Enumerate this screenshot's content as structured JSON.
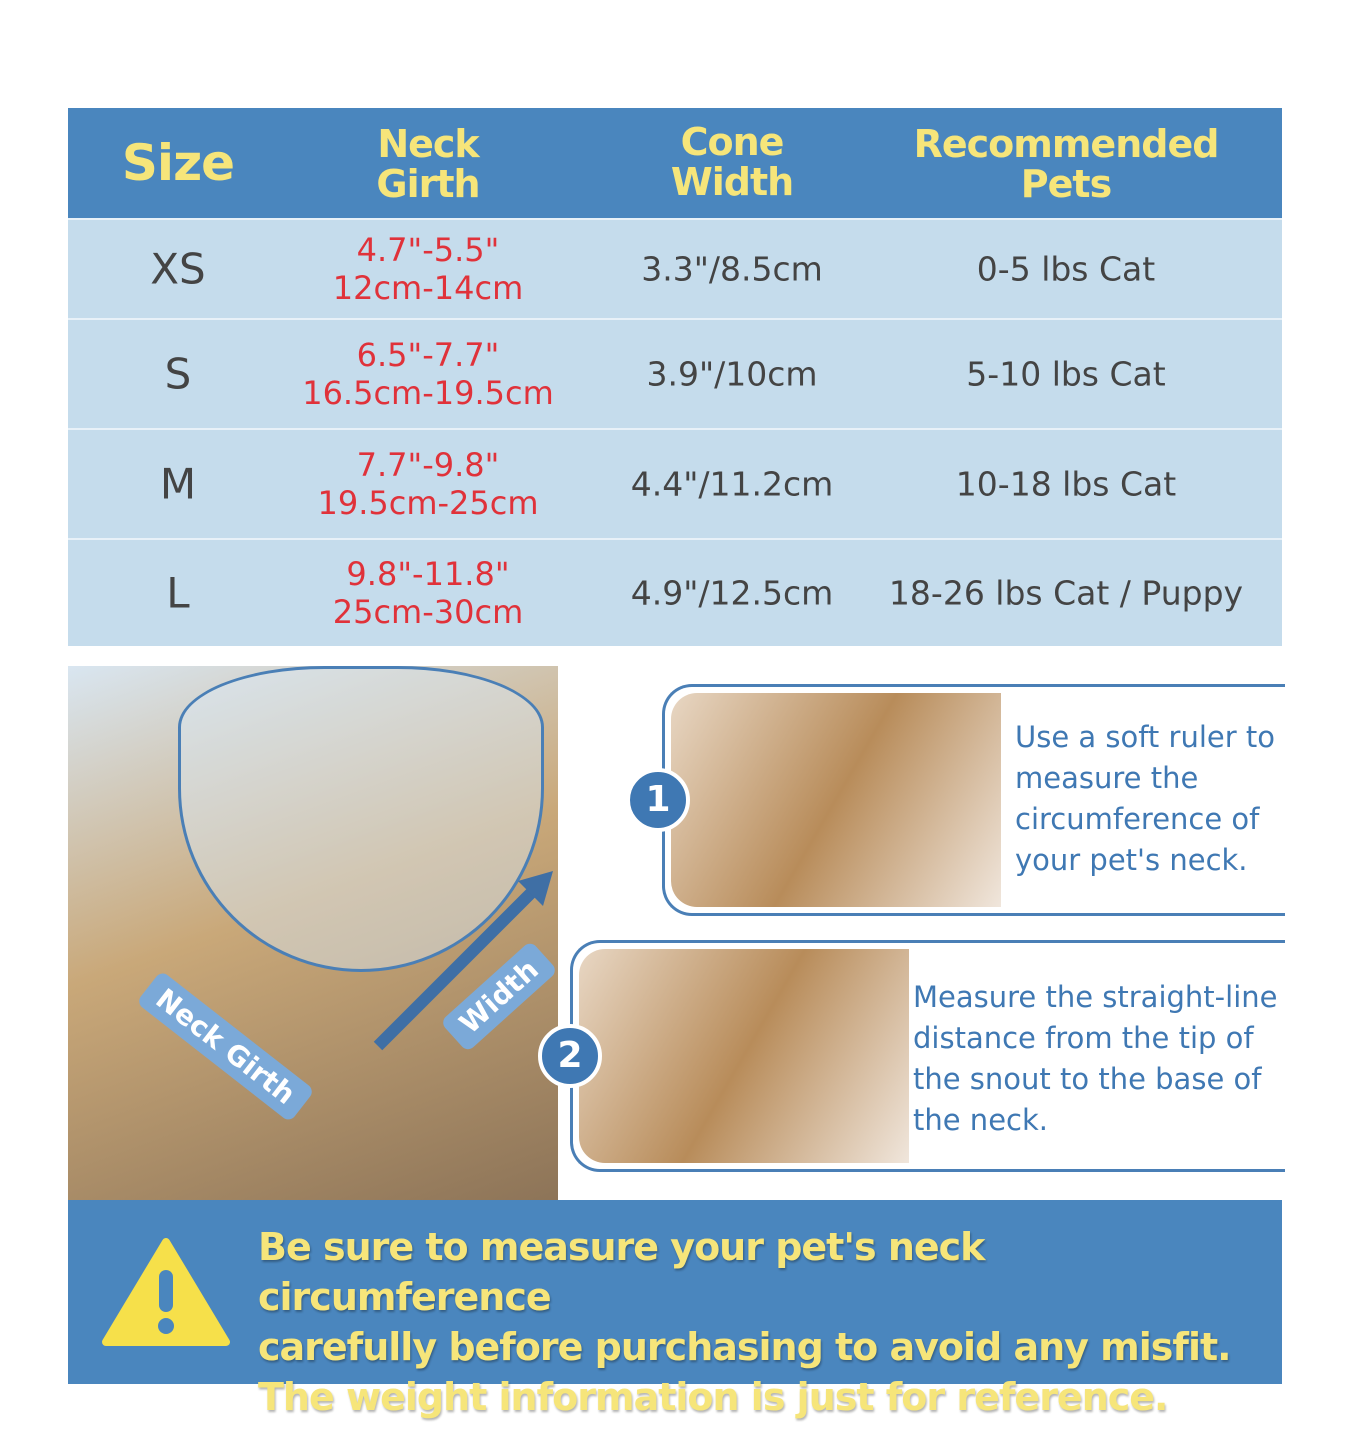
{
  "table": {
    "headers": [
      "Size",
      "Neck\nGirth",
      "Cone\nWidth",
      "Recommended\nPets"
    ],
    "header_lines": [
      [
        "Size"
      ],
      [
        "Neck",
        "Girth"
      ],
      [
        "Cone",
        "Width"
      ],
      [
        "Recommended",
        "Pets"
      ]
    ],
    "rows": [
      {
        "size": "XS",
        "girth_in": "4.7\"-5.5\"",
        "girth_cm": "12cm-14cm",
        "cone_width": "3.3\"/8.5cm",
        "pets": "0-5 lbs Cat"
      },
      {
        "size": "S",
        "girth_in": "6.5\"-7.7\"",
        "girth_cm": "16.5cm-19.5cm",
        "cone_width": "3.9\"/10cm",
        "pets": "5-10 lbs Cat"
      },
      {
        "size": "M",
        "girth_in": "7.7\"-9.8\"",
        "girth_cm": "19.5cm-25cm",
        "cone_width": "4.4\"/11.2cm",
        "pets": "10-18 lbs Cat"
      },
      {
        "size": "L",
        "girth_in": "9.8\"-11.8\"",
        "girth_cm": "25cm-30cm",
        "cone_width": "4.9\"/12.5cm",
        "pets": "18-26 lbs Cat / Puppy"
      }
    ]
  },
  "diagram": {
    "neck_label": "Neck Girth",
    "width_label": "Width"
  },
  "steps": [
    {
      "number": "1",
      "lines": [
        "Use a soft ruler to",
        "measure the",
        "circumference of",
        "your pet's neck."
      ]
    },
    {
      "number": "2",
      "lines": [
        "Measure the straight-line",
        "distance from the tip of",
        "the snout to the base of",
        "the neck."
      ]
    }
  ],
  "warning": {
    "icon": "warning-triangle-icon",
    "lines": [
      "Be sure to measure your pet's neck circumference",
      "carefully before purchasing to avoid any misfit.",
      "The weight information is just for reference."
    ]
  },
  "colors": {
    "header": "#4a86be",
    "row": "#c5dcec",
    "yellow": "#f6e57a",
    "red": "#e0323a"
  }
}
